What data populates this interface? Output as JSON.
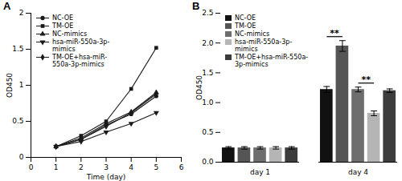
{
  "chart_data": [
    {
      "type": "line",
      "title": "A",
      "x_label": "Time (day)",
      "y_label": "OD450",
      "x": [
        1,
        2,
        3,
        4,
        5
      ],
      "xlim": [
        0,
        6
      ],
      "xticks": [
        0,
        1,
        2,
        3,
        4,
        5,
        6
      ],
      "ylim": [
        0,
        2
      ],
      "yticks": [
        0,
        0.5,
        1,
        1.5,
        2
      ],
      "legend": "top-left",
      "grid": false,
      "series": [
        {
          "name": "NC-OE",
          "color": "#1a1a1a",
          "marker": "circle",
          "values": [
            0.15,
            0.25,
            0.45,
            0.6,
            0.85
          ]
        },
        {
          "name": "TM-OE",
          "color": "#1a1a1a",
          "marker": "square",
          "values": [
            0.15,
            0.3,
            0.5,
            0.95,
            1.52
          ]
        },
        {
          "name": "NC-mimics",
          "color": "#1a1a1a",
          "marker": "triangle",
          "values": [
            0.15,
            0.27,
            0.47,
            0.63,
            0.9
          ]
        },
        {
          "name": "hsa-miR-550a-3p-mimics",
          "color": "#1a1a1a",
          "marker": "triangle-down",
          "values": [
            0.15,
            0.22,
            0.35,
            0.47,
            0.62
          ]
        },
        {
          "name": "TM-OE+hsa-miR-550a-3p-mimics",
          "color": "#1a1a1a",
          "marker": "diamond",
          "values": [
            0.15,
            0.25,
            0.43,
            0.62,
            0.88
          ]
        }
      ]
    },
    {
      "type": "bar",
      "title": "B",
      "y_label": "OD450",
      "categories": [
        "day 1",
        "day 4"
      ],
      "ylim": [
        0,
        2.5
      ],
      "yticks": [
        {
          "value": 0,
          "label": "0.0"
        },
        {
          "value": 0.5,
          "label": "0.5"
        },
        {
          "value": 1,
          "label": "1.0"
        },
        {
          "value": 1.5,
          "label": "1.5"
        },
        {
          "value": 2,
          "label": "2.0"
        },
        {
          "value": 2.5,
          "label": "2.5"
        }
      ],
      "legend": "top-left",
      "grid": false,
      "series": [
        {
          "name": "NC-OE",
          "color": "#111111",
          "values": [
            0.24,
            1.22
          ],
          "errors": [
            0.02,
            0.05
          ]
        },
        {
          "name": "TM-OE",
          "color": "#555555",
          "values": [
            0.24,
            1.95
          ],
          "errors": [
            0.02,
            0.09
          ]
        },
        {
          "name": "NC-mimics",
          "color": "#6e6e6e",
          "values": [
            0.24,
            1.22
          ],
          "errors": [
            0.02,
            0.04
          ]
        },
        {
          "name": "hsa-miR-550a-3p-mimics",
          "color": "#b5b5b5",
          "values": [
            0.24,
            0.82
          ],
          "errors": [
            0.02,
            0.04
          ]
        },
        {
          "name": "TM-OE+hsa-miR-550a-3p-mimics",
          "color": "#3c3c3c",
          "values": [
            0.24,
            1.2
          ],
          "errors": [
            0.02,
            0.03
          ]
        }
      ],
      "annotations": [
        {
          "text": "**",
          "category": "day 4",
          "from": "NC-OE",
          "to": "TM-OE"
        },
        {
          "text": "**",
          "category": "day 4",
          "from": "NC-mimics",
          "to": "hsa-miR-550a-3p-mimics"
        }
      ]
    }
  ]
}
